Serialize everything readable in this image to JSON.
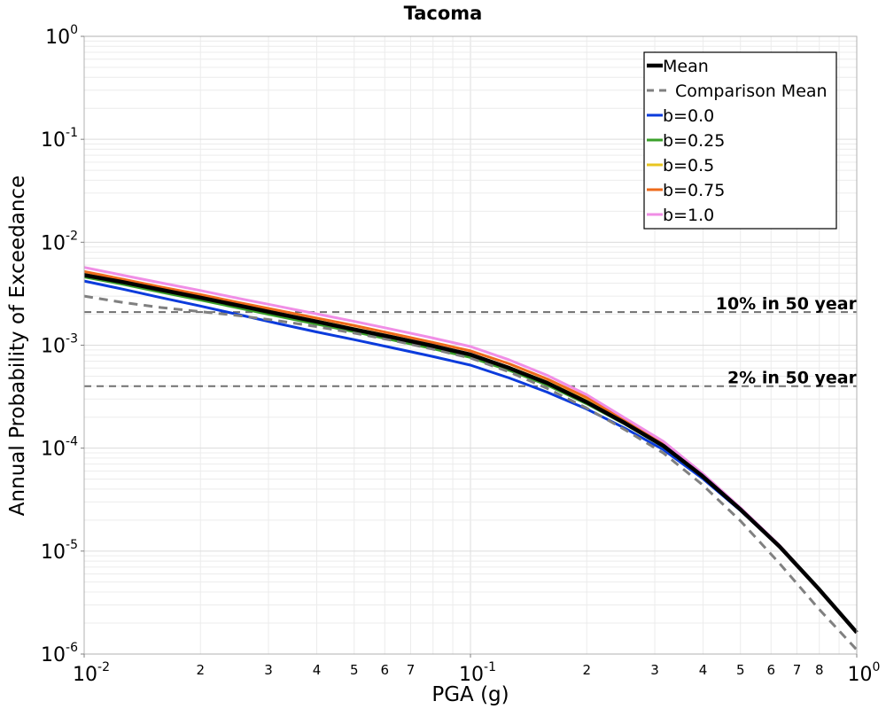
{
  "chart_data": {
    "type": "line",
    "title": "Tacoma",
    "xlabel": "PGA (g)",
    "ylabel": "Annual Probability of Exceedance",
    "xscale": "log",
    "yscale": "log",
    "xlim": [
      0.01,
      1.0
    ],
    "ylim": [
      1e-06,
      1.0
    ],
    "grid": true,
    "legend_position": "top-right",
    "x_major_ticks": [
      {
        "value": 0.01,
        "base": "10",
        "exp": "-2"
      },
      {
        "value": 0.1,
        "base": "10",
        "exp": "-1"
      },
      {
        "value": 1.0,
        "base": "10",
        "exp": "0"
      }
    ],
    "x_minor_tick_labels": [
      {
        "value": 0.02,
        "label": "2"
      },
      {
        "value": 0.03,
        "label": "3"
      },
      {
        "value": 0.04,
        "label": "4"
      },
      {
        "value": 0.05,
        "label": "5"
      },
      {
        "value": 0.06,
        "label": "6"
      },
      {
        "value": 0.07,
        "label": "7"
      },
      {
        "value": 0.2,
        "label": "2"
      },
      {
        "value": 0.3,
        "label": "3"
      },
      {
        "value": 0.4,
        "label": "4"
      },
      {
        "value": 0.5,
        "label": "5"
      },
      {
        "value": 0.6,
        "label": "6"
      },
      {
        "value": 0.7,
        "label": "7"
      },
      {
        "value": 0.8,
        "label": "8"
      }
    ],
    "y_major_ticks": [
      {
        "value": 1.0,
        "base": "10",
        "exp": "0"
      },
      {
        "value": 0.1,
        "base": "10",
        "exp": "-1"
      },
      {
        "value": 0.01,
        "base": "10",
        "exp": "-2"
      },
      {
        "value": 0.001,
        "base": "10",
        "exp": "-3"
      },
      {
        "value": 0.0001,
        "base": "10",
        "exp": "-4"
      },
      {
        "value": 1e-05,
        "base": "10",
        "exp": "-5"
      },
      {
        "value": 1e-06,
        "base": "10",
        "exp": "-6"
      }
    ],
    "hlines": [
      {
        "y": 0.0021,
        "label": "10% in 50 year"
      },
      {
        "y": 0.0004,
        "label": "2% in 50 year"
      }
    ],
    "x": [
      0.01,
      0.0126,
      0.0158,
      0.02,
      0.0251,
      0.0316,
      0.0398,
      0.0501,
      0.0631,
      0.0794,
      0.1,
      0.126,
      0.158,
      0.2,
      0.251,
      0.316,
      0.398,
      0.501,
      0.631,
      0.794,
      1.0
    ],
    "series": [
      {
        "name": "b=0.0",
        "color": "#0b3bdc",
        "width": 3,
        "dash": "",
        "values": [
          0.0042,
          0.0035,
          0.0029,
          0.0024,
          0.00198,
          0.00163,
          0.00135,
          0.00113,
          0.00094,
          0.00078,
          0.00064,
          0.00048,
          0.00035,
          0.00024,
          0.000156,
          9.64e-05,
          5.11e-05,
          2.46e-05,
          1.1e-05,
          4.36e-06,
          1.62e-06
        ]
      },
      {
        "name": "b=0.25",
        "color": "#3aa02a",
        "width": 3,
        "dash": "",
        "values": [
          0.0046,
          0.0039,
          0.00328,
          0.00275,
          0.0023,
          0.00192,
          0.00161,
          0.00135,
          0.00112,
          0.00093,
          0.00076,
          0.00057,
          0.00041,
          0.00027,
          0.000171,
          0.000103,
          5.32e-05,
          2.51e-05,
          1.11e-05,
          4.36e-06,
          1.62e-06
        ]
      },
      {
        "name": "b=0.5",
        "color": "#e8c520",
        "width": 3,
        "dash": "",
        "values": [
          0.0049,
          0.00412,
          0.00348,
          0.00293,
          0.00245,
          0.00205,
          0.00173,
          0.00145,
          0.00121,
          0.001,
          0.00082,
          0.00061,
          0.00044,
          0.00029,
          0.000179,
          0.000107,
          5.45e-05,
          2.54e-05,
          1.12e-05,
          4.37e-06,
          1.62e-06
        ]
      },
      {
        "name": "b=0.75",
        "color": "#ee6a1a",
        "width": 3,
        "dash": "",
        "values": [
          0.0052,
          0.00437,
          0.00368,
          0.0031,
          0.0026,
          0.00219,
          0.00184,
          0.00155,
          0.00129,
          0.00107,
          0.00088,
          0.00066,
          0.00047,
          0.00031,
          0.000187,
          0.000111,
          5.58e-05,
          2.57e-05,
          1.13e-05,
          4.38e-06,
          1.62e-06
        ]
      },
      {
        "name": "b=1.0",
        "color": "#f08ee6",
        "width": 3,
        "dash": "",
        "values": [
          0.0057,
          0.00478,
          0.00404,
          0.0034,
          0.00285,
          0.0024,
          0.00202,
          0.0017,
          0.00142,
          0.00118,
          0.00097,
          0.00072,
          0.00051,
          0.00033,
          0.000196,
          0.000116,
          5.72e-05,
          2.62e-05,
          1.14e-05,
          4.39e-06,
          1.62e-06
        ]
      },
      {
        "name": "Comparison Mean",
        "color": "#808080",
        "width": 3,
        "dash": "10,7",
        "values": [
          0.003,
          0.0026,
          0.00232,
          0.00212,
          0.00194,
          0.00173,
          0.00152,
          0.00131,
          0.00111,
          0.00092,
          0.00075,
          0.00055,
          0.00038,
          0.000245,
          0.000151,
          8.95e-05,
          4.43e-05,
          1.95e-05,
          7.6e-06,
          2.8e-06,
          1.1e-06
        ]
      },
      {
        "name": "Mean",
        "color": "#000000",
        "width": 4.5,
        "dash": "",
        "values": [
          0.0048,
          0.0041,
          0.00345,
          0.0029,
          0.00243,
          0.00203,
          0.0017,
          0.00142,
          0.00119,
          0.00099,
          0.00081,
          0.0006,
          0.00043,
          0.00028,
          0.000175,
          0.000105,
          5.38e-05,
          2.52e-05,
          1.11e-05,
          4.37e-06,
          1.62e-06
        ]
      }
    ],
    "legend_order": [
      "Mean",
      "Comparison Mean",
      "b=0.0",
      "b=0.25",
      "b=0.5",
      "b=0.75",
      "b=1.0"
    ]
  }
}
